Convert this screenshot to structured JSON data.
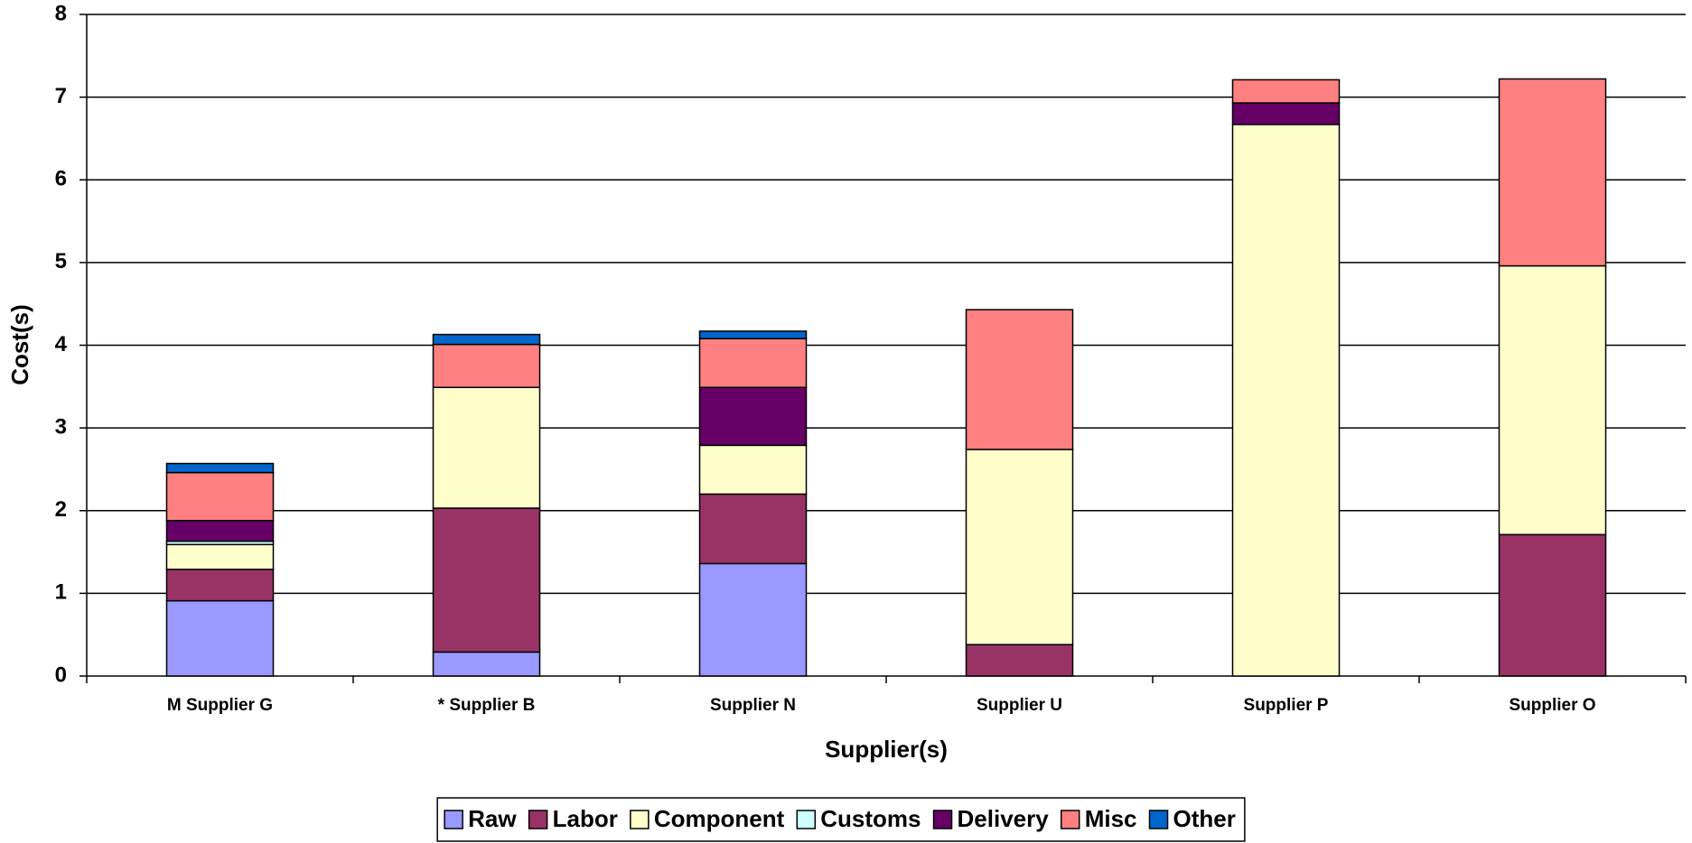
{
  "chart_data": {
    "type": "stacked_bar",
    "x_label": "Supplier(s)",
    "y_label": "Cost(s)",
    "categories": [
      "M Supplier G",
      "*  Supplier B",
      "Supplier N",
      "Supplier U",
      "Supplier P",
      "Supplier O"
    ],
    "series": [
      {
        "name": "Raw",
        "color": "#9999ff",
        "values": [
          0.91,
          0.29,
          1.36,
          0,
          0,
          0
        ]
      },
      {
        "name": "Labor",
        "color": "#993366",
        "values": [
          0.38,
          1.74,
          0.84,
          0.38,
          0,
          1.71
        ]
      },
      {
        "name": "Component",
        "color": "#ffffcc",
        "values": [
          0.3,
          1.46,
          0.59,
          2.36,
          6.67,
          3.25
        ]
      },
      {
        "name": "Customs",
        "color": "#ccffff",
        "values": [
          0.04,
          0,
          0,
          0,
          0,
          0
        ]
      },
      {
        "name": "Delivery",
        "color": "#660066",
        "values": [
          0.25,
          0,
          0.7,
          0,
          0.26,
          0
        ]
      },
      {
        "name": "Misc",
        "color": "#ff8080",
        "values": [
          0.58,
          0.52,
          0.59,
          1.69,
          0.28,
          2.26
        ]
      },
      {
        "name": "Other",
        "color": "#0066cc",
        "values": [
          0.11,
          0.12,
          0.09,
          0,
          0,
          0
        ]
      }
    ],
    "ylim": [
      0,
      8
    ],
    "yticks": [
      0,
      1,
      2,
      3,
      4,
      5,
      6,
      7,
      8
    ],
    "grid": true,
    "legend": "bottom"
  }
}
